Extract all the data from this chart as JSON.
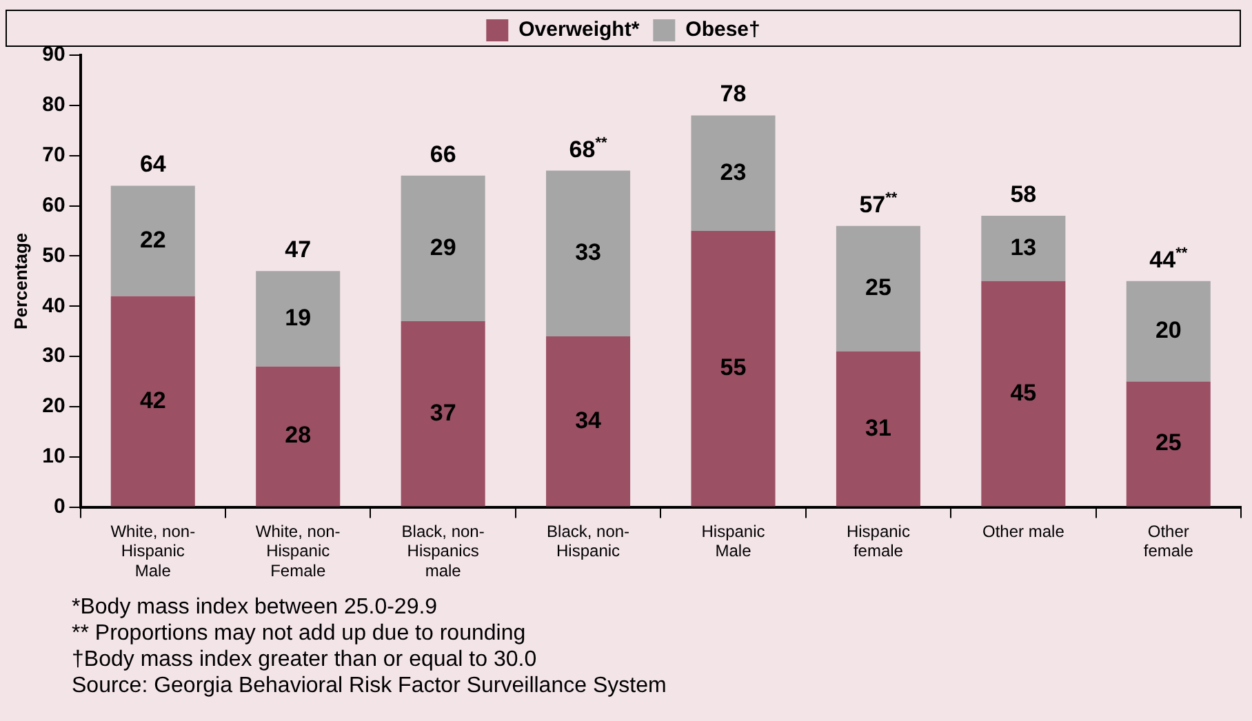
{
  "chart_data": {
    "type": "bar",
    "stacked": true,
    "ylabel": "Percentage",
    "categories": [
      "White, non-Hispanic Male",
      "White, non-Hispanic Female",
      "Black, non-Hispanics male",
      "Black, non-Hispanic",
      "Hispanic Male",
      "Hispanic female",
      "Other male",
      "Other female"
    ],
    "series": [
      {
        "name": "Overweight*",
        "color": "#9b5064",
        "values": [
          42,
          28,
          37,
          34,
          55,
          31,
          45,
          25
        ]
      },
      {
        "name": "Obese†",
        "color": "#a6a6a6",
        "values": [
          22,
          19,
          29,
          33,
          23,
          25,
          13,
          20
        ]
      }
    ],
    "totals": [
      "64",
      "47",
      "66",
      "68**",
      "78",
      "57**",
      "58",
      "44**"
    ],
    "ylim": [
      0,
      90
    ],
    "yticks": [
      0,
      10,
      20,
      30,
      40,
      50,
      60,
      70,
      80,
      90
    ],
    "grid": false,
    "legend": "top",
    "data_labels": true,
    "annotations": [
      "*Body mass index between 25.0-29.9",
      "** Proportions may not add up due to rounding",
      "†Body mass index greater than or equal to 30.0",
      "Source: Georgia Behavioral Risk Factor Surveillance System"
    ]
  }
}
